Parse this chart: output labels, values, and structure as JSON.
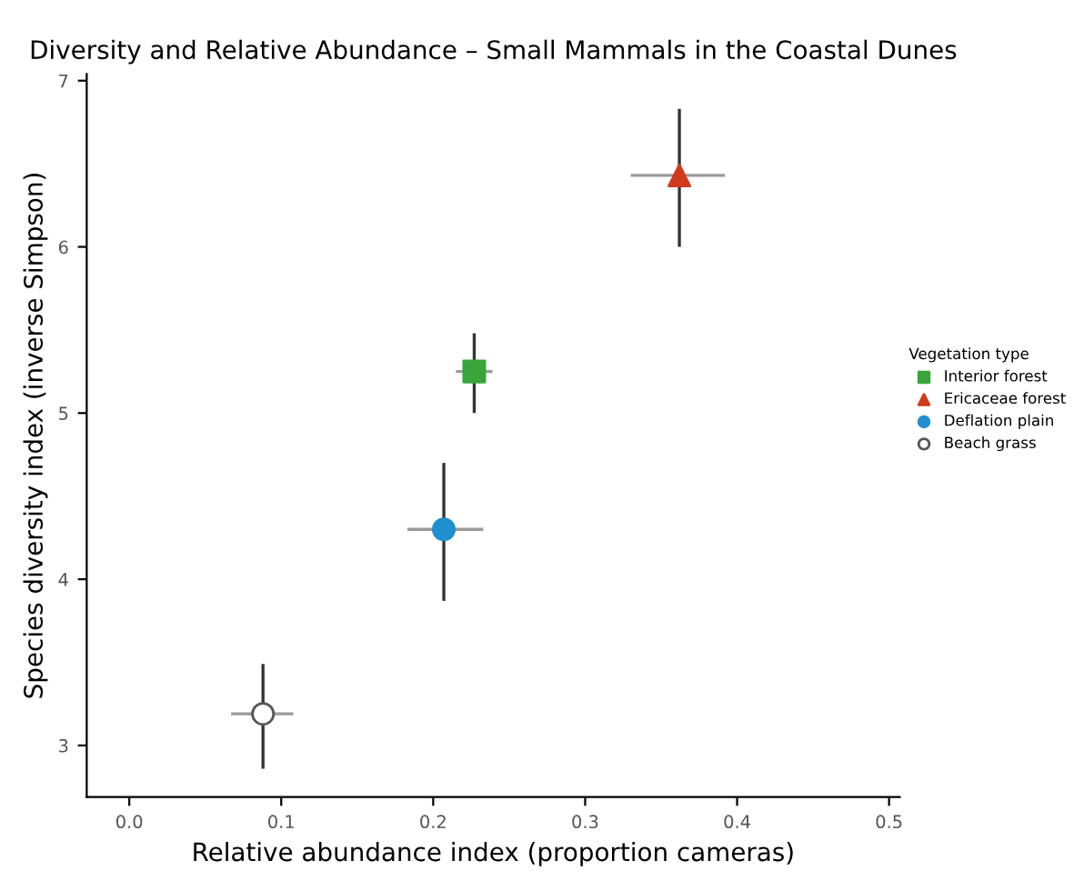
{
  "chart_data": {
    "type": "scatter",
    "title": "Diversity and Relative Abundance – Small Mammals in the Coastal Dunes",
    "xlabel": "Relative abundance index (proportion cameras)",
    "ylabel": "Species diversity index (inverse Simpson)",
    "legend_title": "Vegetation type",
    "legend": "right",
    "grid": false,
    "xlim": [
      -0.028,
      0.507
    ],
    "xticks": [
      {
        "value": 0.0,
        "label": "0.0"
      },
      {
        "value": 0.1,
        "label": "0.1"
      },
      {
        "value": 0.2,
        "label": "0.2"
      },
      {
        "value": 0.3,
        "label": "0.3"
      },
      {
        "value": 0.4,
        "label": "0.4"
      },
      {
        "value": 0.5,
        "label": "0.5"
      }
    ],
    "ylim": [
      2.69,
      7.04
    ],
    "yticks": [
      3,
      4,
      5,
      6,
      7
    ],
    "series": [
      {
        "name": "Interior forest",
        "color": "#3aa53a",
        "marker": "square",
        "x": [
          0.227
        ],
        "values": [
          5.25
        ],
        "errors": [
          [
            5.0,
            5.48
          ]
        ],
        "xerrors": [
          [
            0.215,
            0.239
          ]
        ]
      },
      {
        "name": "Ericaceae forest",
        "color": "#d23a1e",
        "marker": "triangle",
        "x": [
          0.362
        ],
        "values": [
          6.43
        ],
        "errors": [
          [
            6.0,
            6.83
          ]
        ],
        "xerrors": [
          [
            0.33,
            0.392
          ]
        ]
      },
      {
        "name": "Deflation plain",
        "color": "#1f8fd0",
        "marker": "circle",
        "x": [
          0.207
        ],
        "values": [
          4.3
        ],
        "errors": [
          [
            3.87,
            4.7
          ]
        ],
        "xerrors": [
          [
            0.183,
            0.233
          ]
        ]
      },
      {
        "name": "Beach grass",
        "color": "#ffffff",
        "marker": "circle",
        "x": [
          0.088
        ],
        "values": [
          3.19
        ],
        "errors": [
          [
            2.86,
            3.49
          ]
        ],
        "xerrors": [
          [
            0.067,
            0.108
          ]
        ]
      }
    ]
  }
}
